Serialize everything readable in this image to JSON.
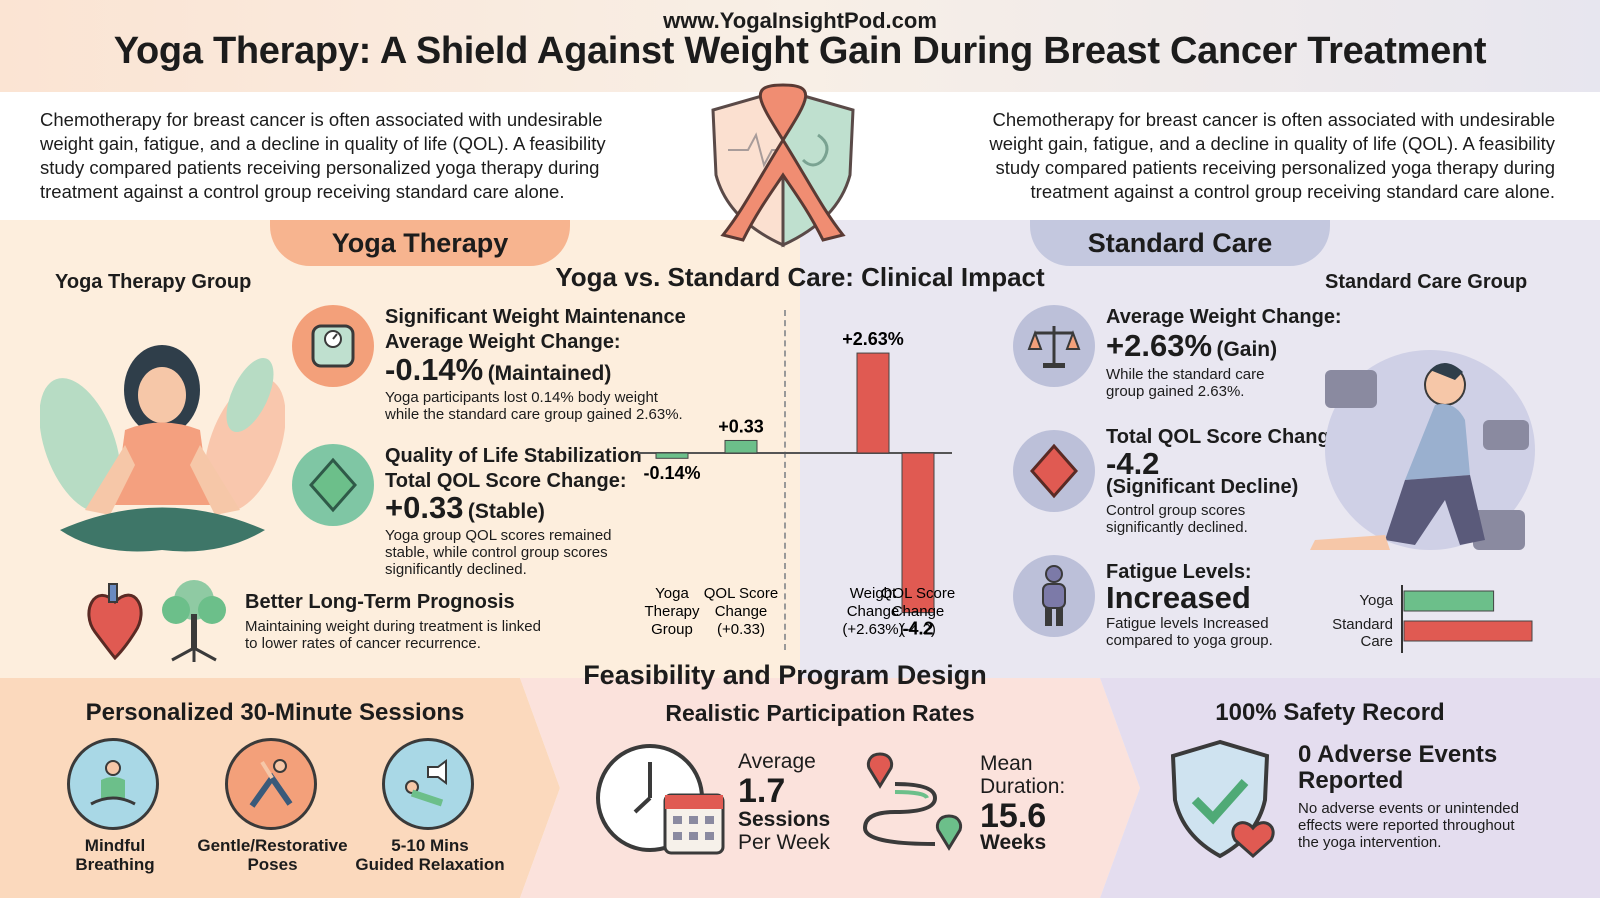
{
  "header": {
    "site": "www.YogaInsightPod.com",
    "title": "Yoga Therapy: A Shield Against Weight Gain During Breast Cancer Treatment"
  },
  "intro": {
    "text": "Chemotherapy for breast cancer is often associated with undesirable weight gain, fatigue, and a decline in quality of life (QOL). A feasibility study compared patients receiving personalized yoga therapy during treatment against a control group receiving standard care alone."
  },
  "tabs": {
    "yoga": "Yoga Therapy",
    "standard": "Standard Care"
  },
  "center_title": "Yoga vs. Standard Care: Clinical Impact",
  "yoga_group": {
    "heading": "Yoga Therapy Group",
    "weight": {
      "title1": "Significant Weight Maintenance",
      "title2": "Average Weight Change:",
      "value": "-0.14%",
      "qualifier": "(Maintained)",
      "note": "Yoga participants lost 0.14% body weight while the standard care group gained 2.63%."
    },
    "qol": {
      "title1": "Quality of Life Stabilization",
      "title2": "Total QOL Score Change:",
      "value": "+0.33",
      "qualifier": "(Stable)",
      "note": "Yoga group QOL scores remained stable, while control group scores significantly declined."
    },
    "prognosis": {
      "title": "Better Long-Term Prognosis",
      "note": "Maintaining weight during treatment is linked to lower rates of cancer recurrence."
    }
  },
  "standard_group": {
    "heading": "Standard Care Group",
    "weight": {
      "title": "Average Weight Change:",
      "value": "+2.63%",
      "qualifier": "(Gain)",
      "note": "While the standard care group gained 2.63%."
    },
    "qol": {
      "title": "Total QOL Score Change:",
      "value": "-4.2",
      "qualifier": "(Significant Decline)",
      "note": "Control group scores significantly declined."
    },
    "fatigue": {
      "title": "Fatigue Levels:",
      "value": "Increased",
      "note": "Fatigue levels Increased compared to yoga group.",
      "bar_labels": [
        "Yoga",
        "Standard Care"
      ]
    }
  },
  "chart_data": [
    {
      "type": "bar",
      "categories": [
        "Yoga Therapy Group",
        "QOL Score Change (+0.33)",
        "Weight Change (+2.63%)",
        "QOL Score Change (-4.2)"
      ],
      "values": [
        -0.14,
        0.33,
        2.63,
        -4.2
      ],
      "value_labels": [
        "-0.14%",
        "+0.33",
        "+2.63%",
        "-4.2"
      ],
      "colors": [
        "#6cbf8a",
        "#6cbf8a",
        "#e05a52",
        "#e05a52"
      ],
      "category_lines": [
        [
          "Yoga",
          "Therapy",
          "Group"
        ],
        [
          "QOL Score",
          "Change",
          "(+0.33)"
        ],
        [
          "Weight",
          "Change",
          "(+2.63%)"
        ],
        [
          "QOL Score",
          "Change",
          "(-4.2)"
        ]
      ]
    },
    {
      "type": "bar",
      "categories": [
        "Yoga",
        "Standard Care"
      ],
      "values": [
        0.7,
        1.0
      ],
      "colors": [
        "#6cbf8a",
        "#e05a52"
      ]
    }
  ],
  "bottom": {
    "sessions": {
      "title": "Personalized 30-Minute Sessions",
      "items": [
        {
          "label": "Mindful Breathing",
          "lines": [
            "Mindful",
            "Breathing"
          ]
        },
        {
          "label": "Gentle/Restorative Poses",
          "lines": [
            "Gentle/Restorative",
            "Poses"
          ]
        },
        {
          "label": "5-10 Mins Guided Relaxation",
          "lines": [
            "5-10 Mins",
            "Guided Relaxation"
          ]
        }
      ]
    },
    "feasibility": {
      "title": "Feasibility and Program Design",
      "subtitle": "Realistic Participation Rates",
      "avg_label": "Average",
      "avg_value": "1.7",
      "avg_unit1": "Sessions",
      "avg_unit2": "Per Week",
      "mean_label1": "Mean",
      "mean_label2": "Duration:",
      "mean_value": "15.6",
      "mean_unit": "Weeks"
    },
    "safety": {
      "title": "100% Safety Record",
      "headline1": "0 Adverse Events",
      "headline2": "Reported",
      "note": "No adverse events or unintended effects were reported throughout the yoga intervention."
    }
  },
  "colors": {
    "orange": "#f3a07a",
    "green": "#6cbf8a",
    "red": "#e05a52",
    "purple": "#7c7aa8"
  }
}
